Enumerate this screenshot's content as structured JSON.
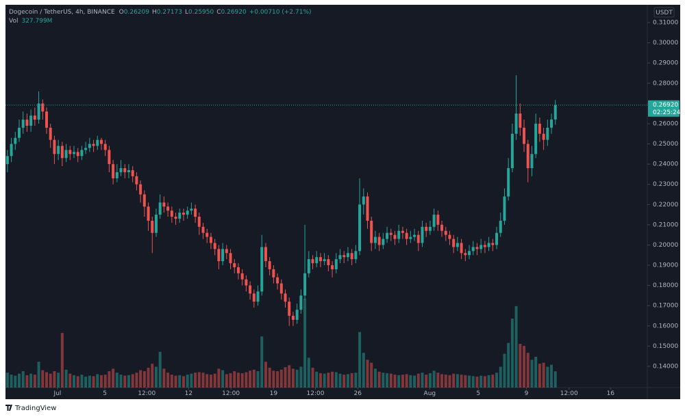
{
  "header": {
    "symbol": "Dogecoin / TetherUS, 4h, BINANCE",
    "ohlc": [
      {
        "label": "O",
        "value": "0.26209"
      },
      {
        "label": "H",
        "value": "0.27173"
      },
      {
        "label": "L",
        "value": "0.25950"
      },
      {
        "label": "C",
        "value": "0.26920"
      }
    ],
    "change": "+0.00710 (+2.71%)",
    "vol_label": "Vol",
    "vol_value": "327.799M",
    "currency": "USDT"
  },
  "footer": {
    "brand": "TradingView"
  },
  "chart_data": {
    "type": "candlestick",
    "up_color": "#26a69a",
    "down_color": "#ef5350",
    "open": [
      0.24,
      0.244,
      0.25,
      0.253,
      0.258,
      0.262,
      0.259,
      0.264,
      0.262,
      0.27,
      0.266,
      0.258,
      0.252,
      0.245,
      0.249,
      0.243,
      0.247,
      0.245,
      0.246,
      0.244,
      0.247,
      0.248,
      0.25,
      0.249,
      0.252,
      0.25,
      0.247,
      0.24,
      0.233,
      0.236,
      0.238,
      0.236,
      0.237,
      0.234,
      0.23,
      0.225,
      0.219,
      0.212,
      0.206,
      0.215,
      0.221,
      0.219,
      0.217,
      0.214,
      0.213,
      0.216,
      0.215,
      0.217,
      0.218,
      0.214,
      0.209,
      0.206,
      0.204,
      0.201,
      0.198,
      0.192,
      0.198,
      0.196,
      0.191,
      0.189,
      0.186,
      0.183,
      0.18,
      0.176,
      0.172,
      0.177,
      0.199,
      0.192,
      0.188,
      0.184,
      0.181,
      0.176,
      0.172,
      0.165,
      0.163,
      0.168,
      0.175,
      0.186,
      0.193,
      0.191,
      0.194,
      0.192,
      0.193,
      0.19,
      0.188,
      0.193,
      0.195,
      0.194,
      0.196,
      0.193,
      0.197,
      0.22,
      0.224,
      0.212,
      0.201,
      0.204,
      0.2,
      0.203,
      0.206,
      0.205,
      0.203,
      0.207,
      0.206,
      0.203,
      0.204,
      0.205,
      0.201,
      0.209,
      0.207,
      0.209,
      0.215,
      0.21,
      0.207,
      0.205,
      0.203,
      0.199,
      0.201,
      0.196,
      0.195,
      0.197,
      0.199,
      0.198,
      0.2,
      0.199,
      0.201,
      0.2,
      0.206,
      0.212,
      0.224,
      0.238,
      0.255,
      0.265,
      0.258,
      0.25,
      0.238,
      0.245,
      0.26,
      0.255,
      0.252,
      0.258,
      0.26209
    ],
    "high": [
      0.247,
      0.253,
      0.256,
      0.262,
      0.266,
      0.265,
      0.267,
      0.268,
      0.276,
      0.272,
      0.268,
      0.26,
      0.254,
      0.252,
      0.251,
      0.25,
      0.249,
      0.249,
      0.248,
      0.249,
      0.251,
      0.253,
      0.252,
      0.254,
      0.253,
      0.252,
      0.249,
      0.242,
      0.24,
      0.242,
      0.24,
      0.24,
      0.239,
      0.236,
      0.232,
      0.227,
      0.221,
      0.214,
      0.218,
      0.225,
      0.224,
      0.221,
      0.219,
      0.216,
      0.218,
      0.218,
      0.219,
      0.221,
      0.22,
      0.216,
      0.211,
      0.208,
      0.206,
      0.203,
      0.2,
      0.201,
      0.2,
      0.198,
      0.193,
      0.191,
      0.188,
      0.185,
      0.182,
      0.178,
      0.18,
      0.205,
      0.201,
      0.194,
      0.19,
      0.186,
      0.183,
      0.178,
      0.174,
      0.167,
      0.171,
      0.178,
      0.21,
      0.197,
      0.195,
      0.197,
      0.196,
      0.196,
      0.195,
      0.192,
      0.196,
      0.198,
      0.197,
      0.199,
      0.198,
      0.2,
      0.233,
      0.228,
      0.226,
      0.214,
      0.207,
      0.206,
      0.206,
      0.209,
      0.208,
      0.207,
      0.21,
      0.209,
      0.208,
      0.207,
      0.208,
      0.207,
      0.212,
      0.211,
      0.212,
      0.218,
      0.217,
      0.212,
      0.209,
      0.207,
      0.205,
      0.204,
      0.203,
      0.198,
      0.2,
      0.202,
      0.201,
      0.203,
      0.202,
      0.204,
      0.203,
      0.209,
      0.216,
      0.228,
      0.243,
      0.26,
      0.284,
      0.27,
      0.262,
      0.252,
      0.249,
      0.265,
      0.263,
      0.258,
      0.262,
      0.265,
      0.27173
    ],
    "low": [
      0.236,
      0.241,
      0.247,
      0.251,
      0.255,
      0.256,
      0.256,
      0.259,
      0.26,
      0.262,
      0.255,
      0.248,
      0.24,
      0.242,
      0.239,
      0.241,
      0.242,
      0.243,
      0.241,
      0.242,
      0.245,
      0.246,
      0.246,
      0.247,
      0.247,
      0.244,
      0.236,
      0.23,
      0.231,
      0.234,
      0.233,
      0.233,
      0.231,
      0.227,
      0.221,
      0.214,
      0.207,
      0.196,
      0.204,
      0.213,
      0.216,
      0.214,
      0.211,
      0.21,
      0.211,
      0.212,
      0.213,
      0.215,
      0.211,
      0.205,
      0.203,
      0.201,
      0.198,
      0.195,
      0.188,
      0.19,
      0.193,
      0.188,
      0.186,
      0.183,
      0.18,
      0.177,
      0.173,
      0.169,
      0.17,
      0.175,
      0.189,
      0.185,
      0.181,
      0.178,
      0.173,
      0.169,
      0.16,
      0.16,
      0.161,
      0.166,
      0.173,
      0.184,
      0.188,
      0.189,
      0.189,
      0.19,
      0.187,
      0.184,
      0.186,
      0.191,
      0.191,
      0.192,
      0.19,
      0.191,
      0.195,
      0.215,
      0.208,
      0.197,
      0.198,
      0.197,
      0.198,
      0.201,
      0.202,
      0.2,
      0.201,
      0.203,
      0.2,
      0.201,
      0.202,
      0.197,
      0.199,
      0.204,
      0.205,
      0.207,
      0.207,
      0.204,
      0.202,
      0.2,
      0.196,
      0.197,
      0.193,
      0.192,
      0.193,
      0.195,
      0.195,
      0.196,
      0.196,
      0.197,
      0.197,
      0.198,
      0.204,
      0.21,
      0.222,
      0.236,
      0.252,
      0.254,
      0.246,
      0.231,
      0.234,
      0.243,
      0.251,
      0.247,
      0.249,
      0.255,
      0.2595
    ],
    "close": [
      0.244,
      0.25,
      0.253,
      0.258,
      0.262,
      0.259,
      0.264,
      0.262,
      0.27,
      0.266,
      0.258,
      0.252,
      0.245,
      0.249,
      0.243,
      0.247,
      0.245,
      0.246,
      0.244,
      0.247,
      0.248,
      0.25,
      0.249,
      0.252,
      0.25,
      0.247,
      0.24,
      0.233,
      0.236,
      0.238,
      0.236,
      0.237,
      0.234,
      0.23,
      0.225,
      0.219,
      0.212,
      0.206,
      0.215,
      0.221,
      0.219,
      0.217,
      0.214,
      0.213,
      0.216,
      0.215,
      0.217,
      0.218,
      0.214,
      0.209,
      0.206,
      0.204,
      0.201,
      0.198,
      0.192,
      0.198,
      0.196,
      0.191,
      0.189,
      0.186,
      0.183,
      0.18,
      0.176,
      0.172,
      0.177,
      0.199,
      0.192,
      0.188,
      0.184,
      0.181,
      0.176,
      0.172,
      0.165,
      0.163,
      0.168,
      0.175,
      0.186,
      0.193,
      0.191,
      0.194,
      0.192,
      0.193,
      0.19,
      0.188,
      0.193,
      0.195,
      0.194,
      0.196,
      0.193,
      0.197,
      0.22,
      0.224,
      0.212,
      0.201,
      0.204,
      0.2,
      0.203,
      0.206,
      0.205,
      0.203,
      0.207,
      0.206,
      0.203,
      0.204,
      0.205,
      0.201,
      0.209,
      0.207,
      0.209,
      0.215,
      0.21,
      0.207,
      0.205,
      0.203,
      0.199,
      0.201,
      0.196,
      0.195,
      0.197,
      0.199,
      0.198,
      0.2,
      0.199,
      0.201,
      0.2,
      0.206,
      0.212,
      0.224,
      0.238,
      0.255,
      0.265,
      0.258,
      0.25,
      0.238,
      0.245,
      0.26,
      0.255,
      0.252,
      0.258,
      0.26209,
      0.2692
    ],
    "volume": [
      300,
      260,
      240,
      280,
      330,
      250,
      280,
      260,
      520,
      350,
      310,
      280,
      330,
      300,
      1100,
      360,
      280,
      250,
      230,
      260,
      220,
      240,
      230,
      270,
      250,
      260,
      330,
      380,
      300,
      260,
      240,
      250,
      270,
      300,
      350,
      330,
      400,
      480,
      420,
      720,
      380,
      300,
      260,
      240,
      250,
      230,
      260,
      280,
      300,
      310,
      300,
      270,
      260,
      280,
      380,
      350,
      270,
      290,
      330,
      300,
      290,
      310,
      340,
      360,
      330,
      1030,
      520,
      400,
      340,
      330,
      360,
      410,
      450,
      380,
      360,
      420,
      1790,
      600,
      400,
      320,
      290,
      280,
      300,
      320,
      310,
      280,
      260,
      270,
      290,
      300,
      1120,
      700,
      560,
      500,
      380,
      320,
      300,
      290,
      280,
      260,
      250,
      260,
      270,
      250,
      240,
      280,
      300,
      260,
      290,
      340,
      300,
      270,
      260,
      250,
      280,
      270,
      260,
      250,
      240,
      230,
      220,
      240,
      230,
      250,
      260,
      300,
      420,
      680,
      900,
      1390,
      1640,
      880,
      840,
      700,
      560,
      620,
      480,
      500,
      420,
      460,
      327.799
    ],
    "ylim": [
      0.1295,
      0.3188
    ],
    "yticks": [
      {
        "value": 0.14,
        "label": "0.14000"
      },
      {
        "value": 0.15,
        "label": "0.15000"
      },
      {
        "value": 0.16,
        "label": "0.16000"
      },
      {
        "value": 0.17,
        "label": "0.17000"
      },
      {
        "value": 0.18,
        "label": "0.18000"
      },
      {
        "value": 0.19,
        "label": "0.19000"
      },
      {
        "value": 0.2,
        "label": "0.20000"
      },
      {
        "value": 0.21,
        "label": "0.21000"
      },
      {
        "value": 0.22,
        "label": "0.22000"
      },
      {
        "value": 0.23,
        "label": "0.23000"
      },
      {
        "value": 0.24,
        "label": "0.24000"
      },
      {
        "value": 0.25,
        "label": "0.25000"
      },
      {
        "value": 0.26,
        "label": "0.26000"
      },
      {
        "value": 0.27,
        "label": "0.27000"
      },
      {
        "value": 0.28,
        "label": "0.28000"
      },
      {
        "value": 0.29,
        "label": "0.29000"
      },
      {
        "value": 0.3,
        "label": "0.30000"
      },
      {
        "value": 0.31,
        "label": "0.31000"
      }
    ],
    "xlim": [
      0,
      164
    ],
    "xticks": [
      {
        "value": 13.3,
        "label": "Jul"
      },
      {
        "value": 25.4,
        "label": "5"
      },
      {
        "value": 36.1,
        "label": "12:00"
      },
      {
        "value": 46.8,
        "label": "12"
      },
      {
        "value": 57.6,
        "label": "12:00"
      },
      {
        "value": 68.5,
        "label": "19"
      },
      {
        "value": 79.2,
        "label": "12:00"
      },
      {
        "value": 90.0,
        "label": "26"
      },
      {
        "value": 108.4,
        "label": "Aug"
      },
      {
        "value": 120.8,
        "label": "5"
      },
      {
        "value": 133.1,
        "label": "9"
      },
      {
        "value": 144.0,
        "label": "12:00"
      },
      {
        "value": 154.6,
        "label": "16"
      }
    ],
    "last_price": {
      "value": 0.2692,
      "label": "0.26920",
      "countdown": "02:25:24"
    }
  }
}
